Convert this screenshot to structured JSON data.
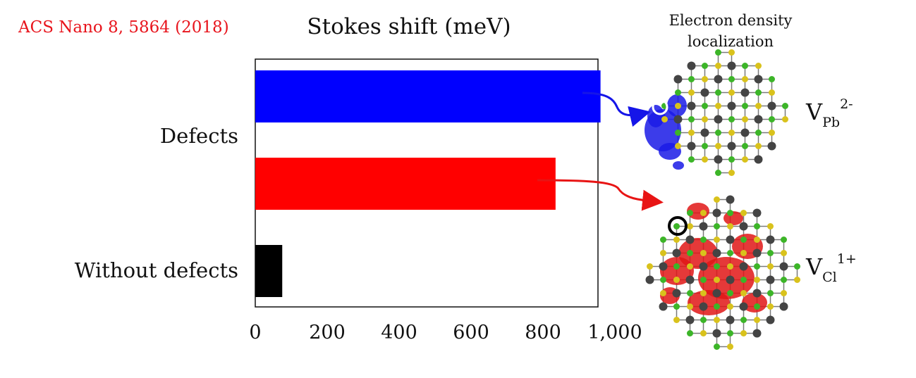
{
  "citation": "ACS Nano 8, 5864 (2018)",
  "side_title": [
    "Electron density",
    "localization"
  ],
  "chart_data": {
    "type": "bar",
    "orientation": "horizontal",
    "title": "Stokes shift (meV)",
    "categories": [
      "Defects",
      "Without defects"
    ],
    "bars": [
      {
        "category": "Defects",
        "value": 960,
        "color": "#0000ff"
      },
      {
        "category": "Defects",
        "value": 835,
        "color": "#ff0000"
      },
      {
        "category": "Without defects",
        "value": 75,
        "color": "#000000"
      }
    ],
    "x_ticks": [
      0,
      200,
      400,
      600,
      800,
      1000
    ],
    "x_tick_labels": [
      "0",
      "200",
      "400",
      "600",
      "800",
      "1,000"
    ],
    "xlim": [
      0,
      1000
    ],
    "grid": false,
    "legend": "none"
  },
  "vacancies": [
    {
      "base": "V",
      "sub": "Pb",
      "sup": "2-",
      "color": "#0000ff"
    },
    {
      "base": "V",
      "sub": "Cl",
      "sup": "1+",
      "color": "#ff0000"
    }
  ]
}
